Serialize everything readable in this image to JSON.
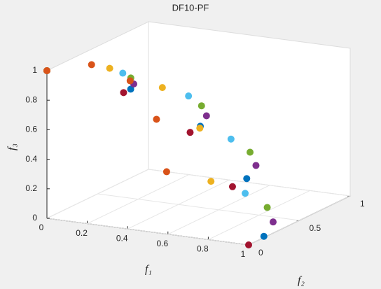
{
  "chart_data": {
    "type": "scatter3d",
    "title": "DF10-PF",
    "x_label": "f₁",
    "y_label": "f₂",
    "z_label": "f₃",
    "xlim": [
      0,
      1
    ],
    "ylim": [
      0,
      1
    ],
    "zlim": [
      0,
      1
    ],
    "xticks": [
      0,
      0.2,
      0.4,
      0.6,
      0.8,
      1
    ],
    "yticks": [
      0,
      0.5,
      1
    ],
    "zticks": [
      0,
      0.2,
      0.4,
      0.6,
      0.8,
      1
    ],
    "series": [
      {
        "color": "#a2142f",
        "x": [
          1,
          0.92,
          0.71,
          0.38,
          0
        ],
        "y": [
          0,
          0,
          0,
          0,
          0
        ],
        "z": [
          0,
          0.38,
          0.71,
          0.92,
          1
        ]
      },
      {
        "color": "#0072bd",
        "x": [
          0.99,
          0.91,
          0.7,
          0.38,
          0
        ],
        "y": [
          0.17,
          0.16,
          0.12,
          0.07,
          0
        ],
        "z": [
          0,
          0.38,
          0.71,
          0.92,
          1
        ]
      },
      {
        "color": "#7e2f8e",
        "x": [
          0.91,
          0.84,
          0.64,
          0.35,
          0
        ],
        "y": [
          0.42,
          0.39,
          0.3,
          0.16,
          0
        ],
        "z": [
          0,
          0.38,
          0.71,
          0.92,
          1
        ]
      },
      {
        "color": "#77ac30",
        "x": [
          0.77,
          0.71,
          0.54,
          0.29,
          0
        ],
        "y": [
          0.64,
          0.59,
          0.45,
          0.25,
          0
        ],
        "z": [
          0,
          0.38,
          0.71,
          0.92,
          1
        ]
      },
      {
        "color": "#4dbeee",
        "x": [
          0.57,
          0.53,
          0.41,
          0.22,
          0
        ],
        "y": [
          0.82,
          0.76,
          0.58,
          0.31,
          0
        ],
        "z": [
          0,
          0.38,
          0.71,
          0.92,
          1
        ]
      },
      {
        "color": "#edb120",
        "x": [
          0.34,
          0.32,
          0.24,
          0.13,
          0
        ],
        "y": [
          0.94,
          0.87,
          0.66,
          0.36,
          0
        ],
        "z": [
          0,
          0.38,
          0.71,
          0.92,
          1
        ]
      },
      {
        "color": "#d95319",
        "x": [
          0.09,
          0.08,
          0.06,
          0.03,
          0
        ],
        "y": [
          1.0,
          0.92,
          0.7,
          0.38,
          0
        ],
        "z": [
          0,
          0.38,
          0.71,
          0.92,
          1
        ]
      }
    ]
  }
}
